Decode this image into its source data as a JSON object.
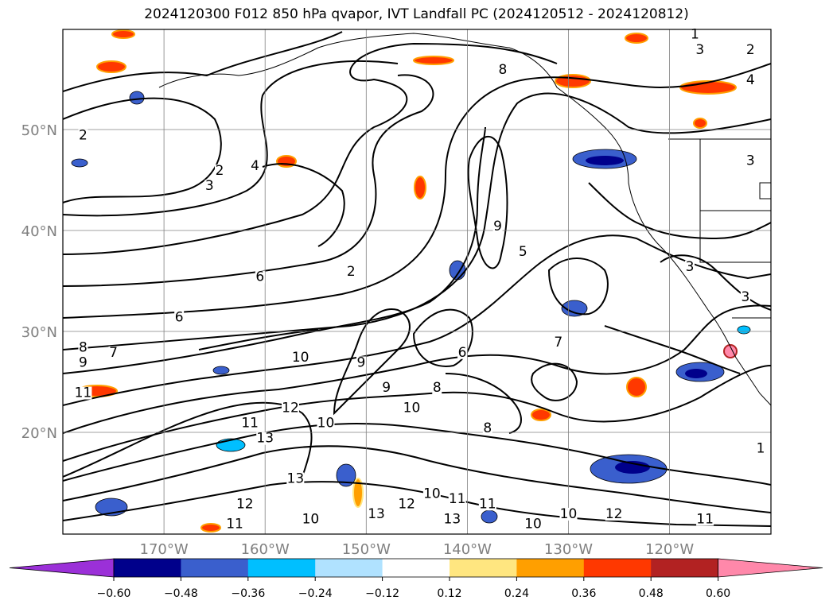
{
  "chart_data": {
    "type": "heatmap",
    "title": "2024120300 F012 850 hPa qvapor, IVT Landfall PC (2024120512 - 2024120812)",
    "projection": "lat-lon map",
    "xlim": [
      -180,
      -110
    ],
    "ylim": [
      10,
      60
    ],
    "grid": true,
    "lat_ticks": [
      {
        "value": 20,
        "label": "20°N"
      },
      {
        "value": 30,
        "label": "30°N"
      },
      {
        "value": 40,
        "label": "40°N"
      },
      {
        "value": 50,
        "label": "50°N"
      }
    ],
    "lon_ticks": [
      {
        "value": -170,
        "label": "170°W"
      },
      {
        "value": -160,
        "label": "160°W"
      },
      {
        "value": -150,
        "label": "150°W"
      },
      {
        "value": -140,
        "label": "140°W"
      },
      {
        "value": -130,
        "label": "130°W"
      },
      {
        "value": -120,
        "label": "120°W"
      }
    ],
    "colorbar": {
      "levels": [
        -0.6,
        -0.48,
        -0.36,
        -0.24,
        -0.12,
        0.12,
        0.24,
        0.36,
        0.48,
        0.6
      ],
      "tick_labels": [
        "−0.60",
        "−0.48",
        "−0.36",
        "−0.24",
        "−0.12",
        "0.12",
        "0.24",
        "0.36",
        "0.48",
        "0.60"
      ],
      "colors": [
        "#9b30d8",
        "#00008b",
        "#3a5fcd",
        "#00bfff",
        "#b0e2ff",
        "#ffffff",
        "#ffe680",
        "#ff9f00",
        "#ff3800",
        "#b22222",
        "#ff88aa"
      ],
      "extend": "both"
    },
    "contour_labels": [
      {
        "text": "1",
        "lon": -117.5,
        "lat": 59
      },
      {
        "text": "2",
        "lon": -112,
        "lat": 57.5
      },
      {
        "text": "3",
        "lon": -117,
        "lat": 57.5
      },
      {
        "text": "4",
        "lon": -112,
        "lat": 54.5
      },
      {
        "text": "2",
        "lon": -178,
        "lat": 49
      },
      {
        "text": "2",
        "lon": -164.5,
        "lat": 45.5
      },
      {
        "text": "3",
        "lon": -165.5,
        "lat": 44
      },
      {
        "text": "4",
        "lon": -161,
        "lat": 46
      },
      {
        "text": "3",
        "lon": -112,
        "lat": 46.5
      },
      {
        "text": "8",
        "lon": -136.5,
        "lat": 55.5
      },
      {
        "text": "9",
        "lon": -137,
        "lat": 40
      },
      {
        "text": "5",
        "lon": -134.5,
        "lat": 37.5
      },
      {
        "text": "3",
        "lon": -118,
        "lat": 36
      },
      {
        "text": "2",
        "lon": -151.5,
        "lat": 35.5
      },
      {
        "text": "6",
        "lon": -160.5,
        "lat": 35
      },
      {
        "text": "3",
        "lon": -112.5,
        "lat": 33
      },
      {
        "text": "6",
        "lon": -168.5,
        "lat": 31
      },
      {
        "text": "8",
        "lon": -178,
        "lat": 28
      },
      {
        "text": "7",
        "lon": -175,
        "lat": 27.5
      },
      {
        "text": "9",
        "lon": -178,
        "lat": 26.5
      },
      {
        "text": "10",
        "lon": -156.5,
        "lat": 27
      },
      {
        "text": "7",
        "lon": -131,
        "lat": 28.5
      },
      {
        "text": "6",
        "lon": -140.5,
        "lat": 27.5
      },
      {
        "text": "9",
        "lon": -150.5,
        "lat": 26.5
      },
      {
        "text": "8",
        "lon": -143,
        "lat": 24
      },
      {
        "text": "9",
        "lon": -148,
        "lat": 24
      },
      {
        "text": "10",
        "lon": -145.5,
        "lat": 22
      },
      {
        "text": "10",
        "lon": -154,
        "lat": 20.5
      },
      {
        "text": "12",
        "lon": -157.5,
        "lat": 22
      },
      {
        "text": "11",
        "lon": -161.5,
        "lat": 20.5
      },
      {
        "text": "13",
        "lon": -160,
        "lat": 19
      },
      {
        "text": "11",
        "lon": -178,
        "lat": 23.5
      },
      {
        "text": "8",
        "lon": -138,
        "lat": 20
      },
      {
        "text": "13",
        "lon": -157,
        "lat": 15
      },
      {
        "text": "12",
        "lon": -162,
        "lat": 12.5
      },
      {
        "text": "11",
        "lon": -163,
        "lat": 10.5
      },
      {
        "text": "10",
        "lon": -155.5,
        "lat": 11
      },
      {
        "text": "13",
        "lon": -149,
        "lat": 11.5
      },
      {
        "text": "12",
        "lon": -146,
        "lat": 12.5
      },
      {
        "text": "10",
        "lon": -143.5,
        "lat": 13.5
      },
      {
        "text": "11",
        "lon": -141,
        "lat": 13
      },
      {
        "text": "13",
        "lon": -141.5,
        "lat": 11
      },
      {
        "text": "10",
        "lon": -133.5,
        "lat": 10.5
      },
      {
        "text": "11",
        "lon": -138,
        "lat": 12.5
      },
      {
        "text": "10",
        "lon": -130,
        "lat": 11.5
      },
      {
        "text": "12",
        "lon": -125.5,
        "lat": 11.5
      },
      {
        "text": "11",
        "lon": -116.5,
        "lat": 11
      },
      {
        "text": "1",
        "lon": -111,
        "lat": 18
      }
    ]
  }
}
